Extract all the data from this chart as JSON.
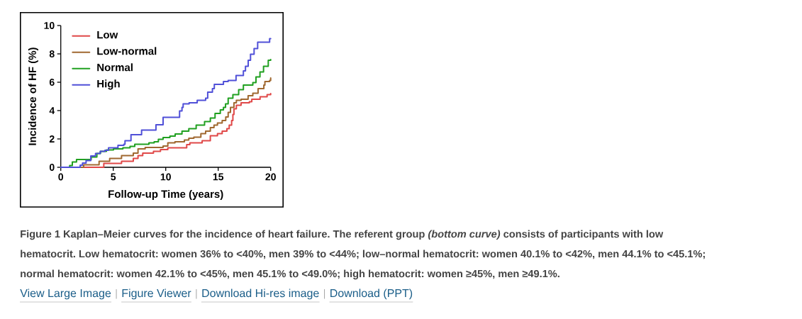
{
  "chart_data": {
    "type": "step",
    "xlabel": "Follow-up Time (years)",
    "ylabel": "Incidence of HF (%)",
    "xlim": [
      0,
      20
    ],
    "ylim": [
      0,
      10
    ],
    "xticks": [
      0,
      5,
      10,
      15,
      20
    ],
    "yticks": [
      0,
      2,
      4,
      6,
      8,
      10
    ],
    "legend": "top left",
    "series": [
      {
        "name": "Low",
        "color": "#e04848",
        "x": [
          0,
          4.1,
          5.79,
          6.91,
          7.36,
          7.81,
          8.83,
          9.5,
          10.2,
          12.0,
          12.3,
          13.47,
          14.25,
          14.93,
          15.38,
          15.83,
          16.05,
          16.28,
          16.4,
          16.5,
          16.73,
          17.18,
          17.97,
          18.2,
          18.99,
          19.66,
          20
        ],
        "values": [
          0,
          0.27,
          0.43,
          0.63,
          0.83,
          1.0,
          1.13,
          1.25,
          1.38,
          1.6,
          1.72,
          1.88,
          2.22,
          2.38,
          2.55,
          2.72,
          2.97,
          3.3,
          3.72,
          4.13,
          4.38,
          4.55,
          4.63,
          4.8,
          4.97,
          5.13,
          5.2
        ]
      },
      {
        "name": "Low-normal",
        "color": "#a06830",
        "x": [
          0,
          2.18,
          3.65,
          4.66,
          5.79,
          6.91,
          7.36,
          8.04,
          9.75,
          10.2,
          10.88,
          11.78,
          12.2,
          12.68,
          13.35,
          13.8,
          14.25,
          14.6,
          14.93,
          15.38,
          15.72,
          15.95,
          16.17,
          16.5,
          16.73,
          17.18,
          17.85,
          18.3,
          18.8,
          19.35,
          19.45,
          19.9,
          20
        ],
        "values": [
          0,
          0.17,
          0.43,
          0.63,
          0.83,
          1.0,
          1.3,
          1.4,
          1.5,
          1.72,
          1.8,
          1.93,
          2.05,
          2.13,
          2.38,
          2.55,
          2.8,
          2.97,
          3.13,
          3.3,
          3.55,
          3.88,
          4.22,
          4.55,
          4.72,
          4.8,
          5.05,
          5.22,
          5.55,
          5.8,
          6.05,
          6.13,
          6.3
        ]
      },
      {
        "name": "Normal",
        "color": "#20a020",
        "x": [
          0,
          0.85,
          1.1,
          1.5,
          2.9,
          3.44,
          3.78,
          4.35,
          5.02,
          5.92,
          6.6,
          7.05,
          8.4,
          8.9,
          9.3,
          9.75,
          10.4,
          10.9,
          11.55,
          12.2,
          12.9,
          13.7,
          14.25,
          14.7,
          15.2,
          15.5,
          15.7,
          15.95,
          16.4,
          16.95,
          17.4,
          18.3,
          18.6,
          18.98,
          19.32,
          19.77,
          20
        ],
        "values": [
          0,
          0.13,
          0.38,
          0.55,
          0.72,
          0.97,
          1.13,
          1.22,
          1.3,
          1.38,
          1.47,
          1.63,
          1.72,
          1.8,
          1.97,
          2.1,
          2.2,
          2.35,
          2.55,
          2.72,
          2.97,
          3.22,
          3.47,
          3.8,
          4.05,
          4.22,
          4.47,
          4.88,
          5.13,
          5.47,
          5.8,
          5.97,
          6.38,
          6.72,
          7.13,
          7.55,
          7.6
        ]
      },
      {
        "name": "High",
        "color": "#5050d8",
        "x": [
          0,
          1.85,
          2.07,
          2.41,
          2.86,
          3.31,
          3.76,
          4.21,
          4.55,
          5.45,
          6.01,
          6.12,
          6.69,
          7.7,
          9.07,
          9.75,
          11.32,
          11.55,
          11.66,
          12.23,
          13.0,
          13.8,
          14.0,
          14.45,
          14.63,
          15.5,
          15.95,
          16.7,
          17.4,
          17.6,
          17.86,
          18.08,
          18.42,
          18.76,
          19.9,
          20
        ],
        "values": [
          0,
          0.15,
          0.3,
          0.47,
          0.8,
          0.97,
          1.13,
          1.2,
          1.38,
          1.55,
          1.63,
          1.88,
          2.3,
          2.63,
          3.0,
          3.52,
          3.97,
          4.22,
          4.47,
          4.55,
          4.72,
          4.88,
          5.3,
          5.55,
          5.85,
          6.05,
          6.13,
          6.47,
          6.8,
          7.13,
          7.55,
          7.97,
          8.38,
          8.83,
          9.08,
          9.08
        ]
      }
    ],
    "annotations": [
      "**Figure 1** Kaplan–Meier curves for the incidence of heart failure. The referent group *(bottom curve)* consists of participants with low hematocrit. Low hematocrit: women 36% to <40%, men 39% to <44%; low–normal hematocrit: women 40.1% to <42%, men 44.1% to <45.1%; normal hematocrit: women 42.1% to <45%, men 45.1% to <49.0%; high hematocrit: women ≥45%, men ≥49.1%.",
      "View Large Image",
      "Figure Viewer",
      "Download Hi-res image",
      "Download (PPT)"
    ]
  }
}
